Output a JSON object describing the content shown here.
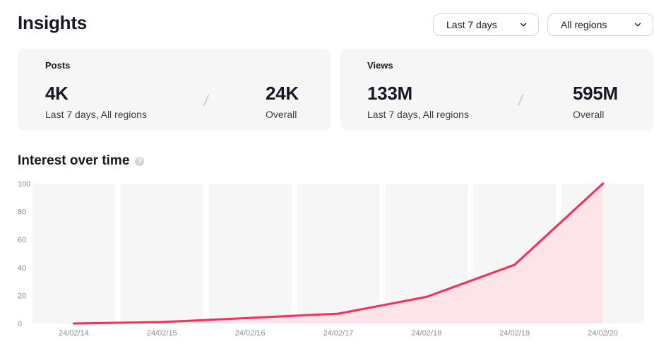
{
  "header": {
    "title": "Insights",
    "range_select": "Last 7 days",
    "region_select": "All regions"
  },
  "cards": [
    {
      "label": "Posts",
      "period_value": "4K",
      "period_caption": "Last 7 days, All regions",
      "overall_value": "24K",
      "overall_caption": "Overall"
    },
    {
      "label": "Views",
      "period_value": "133M",
      "period_caption": "Last 7 days, All regions",
      "overall_value": "595M",
      "overall_caption": "Overall"
    }
  ],
  "chart_data": {
    "type": "area",
    "title": "Interest over time",
    "categories": [
      "24/02/14",
      "24/02/15",
      "24/02/16",
      "24/02/17",
      "24/02/18",
      "24/02/19",
      "24/02/20"
    ],
    "series": [
      {
        "values": [
          0,
          1,
          4,
          7,
          19,
          42,
          100
        ]
      }
    ],
    "ylim": [
      0,
      100
    ],
    "yticks": [
      0,
      20,
      40,
      60,
      80,
      100
    ],
    "grid": false,
    "colors": {
      "line": "#fe2c55",
      "fill": "#fce4e9",
      "band": "#f6f6f7",
      "tick": "#8a8b91"
    }
  }
}
